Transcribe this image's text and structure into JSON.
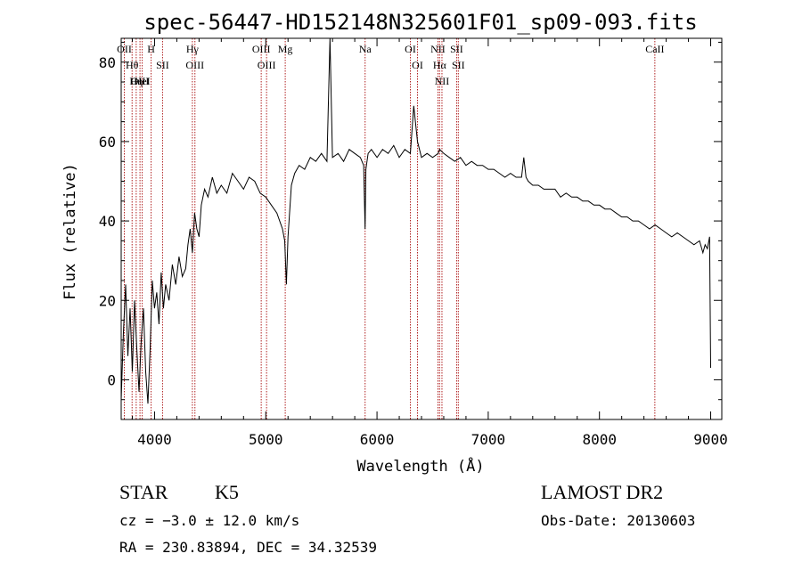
{
  "chart_data": {
    "type": "line",
    "title": "spec-56447-HD152148N325601F01_sp09-093.fits",
    "xlabel": "Wavelength (Å)",
    "ylabel": "Flux (relative)",
    "xlim": [
      3700,
      9100
    ],
    "ylim": [
      -10,
      86
    ],
    "x_ticks": [
      4000,
      5000,
      6000,
      7000,
      8000,
      9000
    ],
    "y_ticks": [
      0,
      20,
      40,
      60,
      80
    ],
    "grid": false,
    "series": [
      {
        "color": "#000000",
        "x": [
          3700,
          3720,
          3740,
          3760,
          3780,
          3800,
          3820,
          3840,
          3860,
          3880,
          3900,
          3920,
          3940,
          3960,
          3980,
          4000,
          4020,
          4040,
          4060,
          4080,
          4100,
          4130,
          4160,
          4190,
          4220,
          4250,
          4280,
          4300,
          4320,
          4340,
          4360,
          4380,
          4400,
          4420,
          4450,
          4480,
          4520,
          4560,
          4600,
          4650,
          4700,
          4750,
          4800,
          4850,
          4900,
          4950,
          5000,
          5050,
          5100,
          5150,
          5170,
          5185,
          5200,
          5230,
          5260,
          5300,
          5350,
          5400,
          5450,
          5500,
          5550,
          5577,
          5600,
          5650,
          5700,
          5750,
          5800,
          5850,
          5880,
          5893,
          5900,
          5920,
          5950,
          6000,
          6050,
          6100,
          6150,
          6200,
          6250,
          6300,
          6330,
          6364,
          6400,
          6450,
          6500,
          6550,
          6563,
          6600,
          6650,
          6700,
          6750,
          6800,
          6850,
          6900,
          6950,
          7000,
          7050,
          7100,
          7150,
          7200,
          7250,
          7300,
          7320,
          7340,
          7360,
          7400,
          7450,
          7500,
          7550,
          7600,
          7650,
          7700,
          7750,
          7800,
          7850,
          7900,
          7950,
          8000,
          8050,
          8100,
          8150,
          8200,
          8250,
          8300,
          8350,
          8400,
          8450,
          8500,
          8550,
          8600,
          8650,
          8700,
          8750,
          8800,
          8850,
          8900,
          8930,
          8950,
          8970,
          8990,
          9000
        ],
        "y": [
          -5,
          12,
          24,
          6,
          18,
          2,
          20,
          8,
          -3,
          10,
          18,
          2,
          -6,
          8,
          25,
          18,
          22,
          14,
          27,
          18,
          24,
          20,
          29,
          24,
          31,
          26,
          28,
          34,
          38,
          32,
          42,
          38,
          36,
          44,
          48,
          46,
          51,
          47,
          49,
          47,
          52,
          50,
          48,
          51,
          50,
          47,
          46,
          44,
          42,
          38,
          35,
          24,
          36,
          49,
          52,
          54,
          53,
          56,
          55,
          57,
          55,
          86,
          56,
          57,
          55,
          58,
          57,
          56,
          54,
          38,
          53,
          57,
          58,
          56,
          58,
          57,
          59,
          56,
          58,
          57,
          69,
          60,
          56,
          57,
          56,
          57,
          58,
          57,
          56,
          55,
          56,
          54,
          55,
          54,
          54,
          53,
          53,
          52,
          51,
          52,
          51,
          51,
          56,
          51,
          50,
          49,
          49,
          48,
          48,
          48,
          46,
          47,
          46,
          46,
          45,
          45,
          44,
          44,
          43,
          43,
          42,
          41,
          41,
          40,
          40,
          39,
          38,
          39,
          38,
          37,
          36,
          37,
          36,
          35,
          34,
          35,
          32,
          34,
          33,
          36,
          3
        ]
      }
    ],
    "line_marks": [
      {
        "label": "Hθ",
        "x": 3798
      },
      {
        "label": "OII",
        "x": 3728
      },
      {
        "label": "HeI",
        "x": 3889
      },
      {
        "label": "OIII",
        "x": 3869
      },
      {
        "label": "Hη",
        "x": 3835
      },
      {
        "label": "H",
        "x": 3969
      },
      {
        "label": "SII",
        "x": 4072
      },
      {
        "label": "OIII",
        "x": 4363
      },
      {
        "label": "Hγ",
        "x": 4340
      },
      {
        "label": "OIII",
        "x": 4959
      },
      {
        "label": "OIII",
        "x": 5007
      },
      {
        "label": "Mg",
        "x": 5175
      },
      {
        "label": "Na",
        "x": 5893
      },
      {
        "label": "OI",
        "x": 6364
      },
      {
        "label": "OI",
        "x": 6300
      },
      {
        "label": "NII",
        "x": 6584
      },
      {
        "label": "Hα",
        "x": 6563
      },
      {
        "label": "NII",
        "x": 6548
      },
      {
        "label": "SII",
        "x": 6716
      },
      {
        "label": "SII",
        "x": 6731
      },
      {
        "label": "CaII",
        "x": 8498
      }
    ]
  },
  "info": {
    "class": "STAR",
    "subclass": "K5",
    "survey": "LAMOST DR2",
    "redshift": "cz = −3.0 ± 12.0 km/s",
    "obs_date": "Obs-Date: 20130603",
    "coords": "RA = 230.83894, DEC =  34.32539"
  },
  "colors": {
    "spectrum": "#000000",
    "marker": "#b02020",
    "frame": "#000000"
  }
}
